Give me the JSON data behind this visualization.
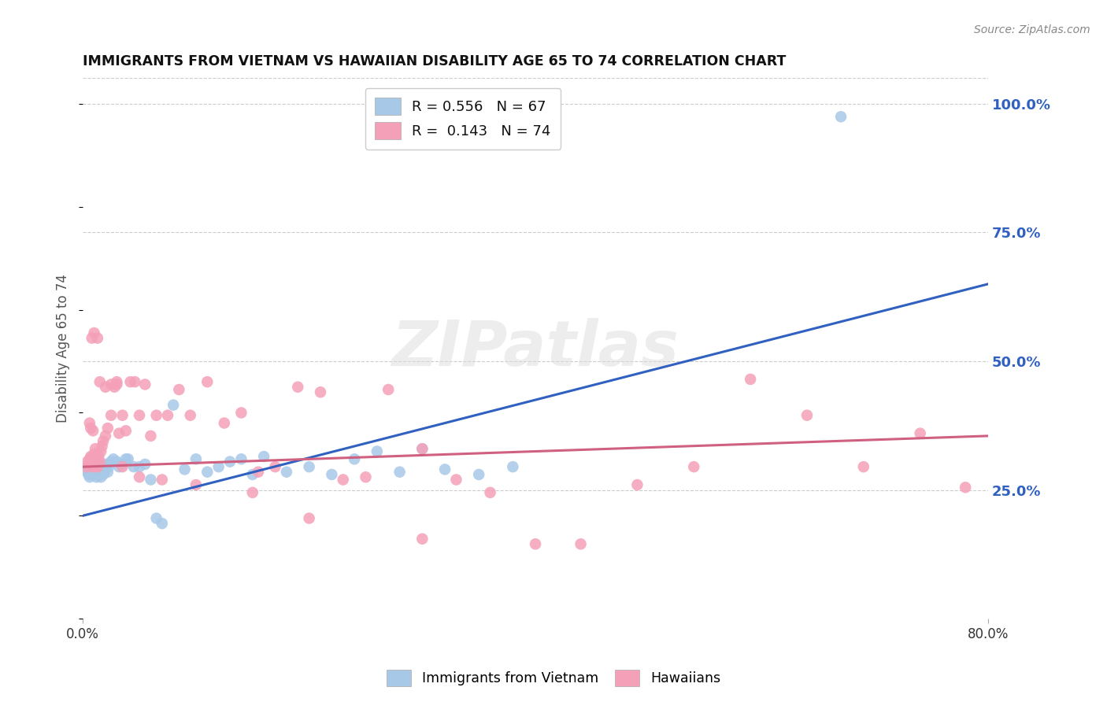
{
  "title": "IMMIGRANTS FROM VIETNAM VS HAWAIIAN DISABILITY AGE 65 TO 74 CORRELATION CHART",
  "source": "Source: ZipAtlas.com",
  "ylabel": "Disability Age 65 to 74",
  "xmin": 0.0,
  "xmax": 0.8,
  "ymin": 0.0,
  "ymax": 1.05,
  "yticks": [
    0.25,
    0.5,
    0.75,
    1.0
  ],
  "ytick_labels": [
    "25.0%",
    "50.0%",
    "75.0%",
    "100.0%"
  ],
  "color_blue": "#a8c8e8",
  "color_pink": "#f4a0b8",
  "line_color_blue": "#3060c0",
  "line_color_pink": "#d06080",
  "watermark": "ZIPatlas",
  "blue_line_x0": 0.0,
  "blue_line_y0": 0.2,
  "blue_line_x1": 0.8,
  "blue_line_y1": 0.65,
  "pink_line_x0": 0.0,
  "pink_line_y0": 0.295,
  "pink_line_x1": 0.8,
  "pink_line_y1": 0.355,
  "blue_scatter_x": [
    0.003,
    0.004,
    0.005,
    0.005,
    0.006,
    0.006,
    0.006,
    0.007,
    0.007,
    0.007,
    0.008,
    0.008,
    0.009,
    0.009,
    0.01,
    0.01,
    0.011,
    0.011,
    0.012,
    0.012,
    0.013,
    0.013,
    0.014,
    0.015,
    0.015,
    0.016,
    0.016,
    0.017,
    0.018,
    0.019,
    0.02,
    0.021,
    0.022,
    0.023,
    0.025,
    0.027,
    0.03,
    0.032,
    0.035,
    0.038,
    0.04,
    0.045,
    0.05,
    0.055,
    0.06,
    0.065,
    0.07,
    0.08,
    0.09,
    0.1,
    0.11,
    0.12,
    0.13,
    0.14,
    0.15,
    0.16,
    0.18,
    0.2,
    0.22,
    0.24,
    0.26,
    0.28,
    0.3,
    0.32,
    0.35,
    0.38,
    0.67
  ],
  "blue_scatter_y": [
    0.29,
    0.285,
    0.28,
    0.295,
    0.285,
    0.275,
    0.295,
    0.28,
    0.29,
    0.3,
    0.285,
    0.295,
    0.28,
    0.29,
    0.285,
    0.295,
    0.28,
    0.29,
    0.285,
    0.275,
    0.29,
    0.28,
    0.285,
    0.29,
    0.3,
    0.275,
    0.285,
    0.295,
    0.28,
    0.285,
    0.295,
    0.3,
    0.285,
    0.295,
    0.305,
    0.31,
    0.305,
    0.295,
    0.3,
    0.31,
    0.31,
    0.295,
    0.295,
    0.3,
    0.27,
    0.195,
    0.185,
    0.415,
    0.29,
    0.31,
    0.285,
    0.295,
    0.305,
    0.31,
    0.28,
    0.315,
    0.285,
    0.295,
    0.28,
    0.31,
    0.325,
    0.285,
    0.33,
    0.29,
    0.28,
    0.295,
    0.975
  ],
  "pink_scatter_x": [
    0.003,
    0.004,
    0.005,
    0.006,
    0.007,
    0.008,
    0.009,
    0.01,
    0.01,
    0.011,
    0.012,
    0.013,
    0.014,
    0.015,
    0.016,
    0.017,
    0.018,
    0.02,
    0.022,
    0.025,
    0.028,
    0.03,
    0.032,
    0.035,
    0.038,
    0.042,
    0.046,
    0.05,
    0.055,
    0.06,
    0.065,
    0.075,
    0.085,
    0.095,
    0.11,
    0.125,
    0.14,
    0.155,
    0.17,
    0.19,
    0.21,
    0.23,
    0.25,
    0.27,
    0.3,
    0.33,
    0.36,
    0.4,
    0.44,
    0.49,
    0.54,
    0.59,
    0.64,
    0.69,
    0.74,
    0.78,
    0.01,
    0.013,
    0.008,
    0.015,
    0.02,
    0.025,
    0.03,
    0.035,
    0.05,
    0.07,
    0.1,
    0.15,
    0.2,
    0.3,
    0.006,
    0.007,
    0.009,
    0.012
  ],
  "pink_scatter_y": [
    0.295,
    0.305,
    0.3,
    0.31,
    0.315,
    0.295,
    0.31,
    0.305,
    0.32,
    0.33,
    0.31,
    0.295,
    0.315,
    0.305,
    0.325,
    0.335,
    0.345,
    0.355,
    0.37,
    0.395,
    0.45,
    0.455,
    0.36,
    0.395,
    0.365,
    0.46,
    0.46,
    0.395,
    0.455,
    0.355,
    0.395,
    0.395,
    0.445,
    0.395,
    0.46,
    0.38,
    0.4,
    0.285,
    0.295,
    0.45,
    0.44,
    0.27,
    0.275,
    0.445,
    0.33,
    0.27,
    0.245,
    0.145,
    0.145,
    0.26,
    0.295,
    0.465,
    0.395,
    0.295,
    0.36,
    0.255,
    0.555,
    0.545,
    0.545,
    0.46,
    0.45,
    0.455,
    0.46,
    0.295,
    0.275,
    0.27,
    0.26,
    0.245,
    0.195,
    0.155,
    0.38,
    0.37,
    0.365,
    0.295
  ]
}
